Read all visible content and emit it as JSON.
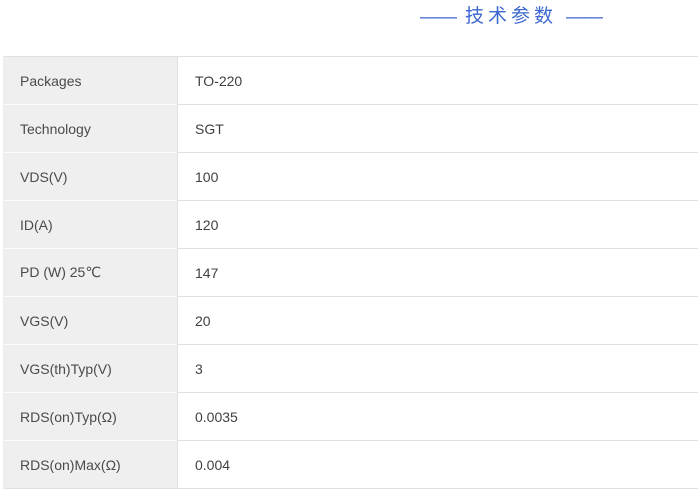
{
  "title": {
    "decor_left": "——",
    "text": "技术参数",
    "decor_right": "——"
  },
  "spec_table": {
    "rows": [
      {
        "label": "Packages",
        "value": "TO-220"
      },
      {
        "label": "Technology",
        "value": "SGT"
      },
      {
        "label": "VDS(V)",
        "value": "100"
      },
      {
        "label": "ID(A)",
        "value": "120"
      },
      {
        "label": "PD (W) 25℃",
        "value": "147"
      },
      {
        "label": "VGS(V)",
        "value": "20"
      },
      {
        "label": "VGS(th)Typ(V)",
        "value": "3"
      },
      {
        "label": "RDS(on)Typ(Ω)",
        "value": "0.0035"
      },
      {
        "label": "RDS(on)Max(Ω)",
        "value": "0.004"
      }
    ]
  },
  "colors": {
    "accent_blue": "#3d68cf",
    "label_cell_bg": "#efefef",
    "border_gray": "#e0e0e0",
    "label_text": "#4a4a4a",
    "value_text": "#404040"
  }
}
